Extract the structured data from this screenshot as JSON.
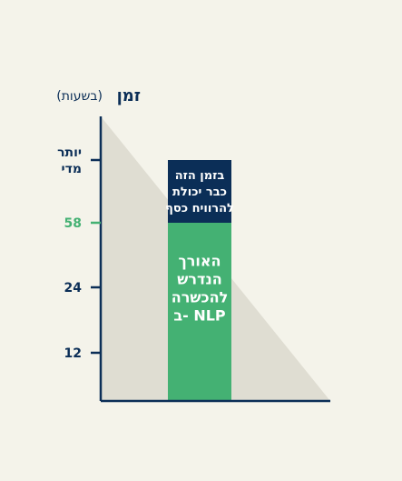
{
  "chart_data": {
    "type": "bar",
    "ylabel": "זמן",
    "yunit": "(בשעות)",
    "yticks": [
      {
        "label": "12",
        "value": 12,
        "highlight": false
      },
      {
        "label": "24",
        "value": 24,
        "highlight": false
      },
      {
        "label": "58",
        "value": 58,
        "highlight": true
      },
      {
        "label": "יותר\nמדי",
        "value": "more",
        "highlight": false
      }
    ],
    "segments": [
      {
        "name": "nlp_training",
        "label": "האורך\nהנדרש\nלהכשרה\nב- NLP",
        "value": 58,
        "color": "#44b173"
      },
      {
        "name": "earn_money",
        "label": "בזמן הזה\nכבר יכולת\nלהרוויח כסף",
        "value": "more",
        "color": "#0b2e57"
      }
    ],
    "background_shape": "descending triangle",
    "colors": {
      "background": "#f4f3ea",
      "triangle": "#dfddd2",
      "axis": "#0b2e57",
      "highlight_tick": "#44b173",
      "text_on_dark": "#ffffff",
      "text_on_green": "#ffffff"
    }
  }
}
